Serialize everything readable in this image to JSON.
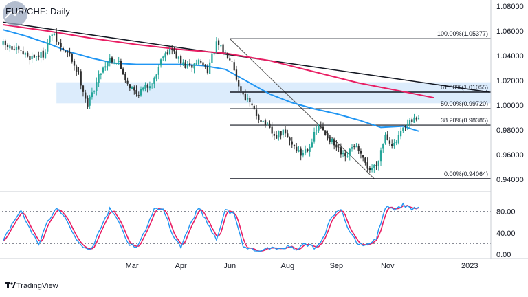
{
  "chart_data": {
    "type": "candlestick",
    "title": "EUR/CHF: Daily",
    "brand": "TradingView",
    "colors": {
      "up": "#26a69a",
      "down": "#2e2e2e",
      "ma_long": "#e91e63",
      "ma_short": "#2196f3",
      "zone": "#d6e9fb",
      "stoch_k": "#2196f3",
      "stoch_d": "#e91e63",
      "trendline": "#131722"
    },
    "price_axis": {
      "ylim": [
        0.93,
        1.085
      ],
      "ticks": [
        {
          "value": 1.08,
          "label": "1.08000"
        },
        {
          "value": 1.06,
          "label": "1.06000"
        },
        {
          "value": 1.04,
          "label": "1.04000"
        },
        {
          "value": 1.02,
          "label": "1.02000"
        },
        {
          "value": 1.0,
          "label": "1.00000"
        },
        {
          "value": 0.98,
          "label": "0.98000"
        },
        {
          "value": 0.96,
          "label": "0.96000"
        },
        {
          "value": 0.94,
          "label": "0.94000"
        }
      ]
    },
    "stoch_axis": {
      "ylim": [
        0,
        100
      ],
      "ticks": [
        {
          "value": 80,
          "label": "80.00"
        },
        {
          "value": 40,
          "label": "40.00"
        },
        {
          "value": 0,
          "label": "0.00"
        }
      ],
      "levels": [
        80,
        20
      ]
    },
    "x_ticks": [
      {
        "bar": 58,
        "label": "Mar"
      },
      {
        "bar": 80,
        "label": "Apr"
      },
      {
        "bar": 102,
        "label": "Jun"
      },
      {
        "bar": 128,
        "label": "Aug"
      },
      {
        "bar": 150,
        "label": "Sep"
      },
      {
        "bar": 173,
        "label": "Nov"
      },
      {
        "bar": 210,
        "label": "2023"
      }
    ],
    "total_bars": 220,
    "fibonacci": [
      {
        "ratio": 1.0,
        "price": 1.05377,
        "label": "100.00%(1.05377)"
      },
      {
        "ratio": 0.618,
        "price": 1.01055,
        "label": "61.80%(1.01055)"
      },
      {
        "ratio": 0.5,
        "price": 0.9972,
        "label": "50.00%(0.99720)"
      },
      {
        "ratio": 0.382,
        "price": 0.98385,
        "label": "38.20%(0.98385)"
      },
      {
        "ratio": 0.0,
        "price": 0.94064,
        "label": "0.00%(0.94064)"
      }
    ],
    "resistance_zone": {
      "from": 1.0015,
      "to": 1.0185,
      "start_bar": 24
    },
    "trendline": {
      "start": [
        0,
        1.067
      ],
      "end": [
        219,
        1.0105
      ]
    },
    "fib_diagonal": {
      "start": [
        102,
        1.05377
      ],
      "end": [
        167,
        0.94064
      ]
    },
    "ma_long": [
      [
        0,
        1.065
      ],
      [
        20,
        1.06
      ],
      [
        40,
        1.054
      ],
      [
        60,
        1.049
      ],
      [
        80,
        1.045
      ],
      [
        100,
        1.042
      ],
      [
        120,
        1.036
      ],
      [
        140,
        1.027
      ],
      [
        160,
        1.018
      ],
      [
        180,
        1.011
      ],
      [
        194,
        1.006
      ]
    ],
    "ma_short": [
      [
        0,
        1.061
      ],
      [
        10,
        1.056
      ],
      [
        20,
        1.05
      ],
      [
        30,
        1.043
      ],
      [
        40,
        1.038
      ],
      [
        50,
        1.034
      ],
      [
        60,
        1.033
      ],
      [
        70,
        1.033
      ],
      [
        80,
        1.033
      ],
      [
        90,
        1.032
      ],
      [
        100,
        1.029
      ],
      [
        110,
        1.019
      ],
      [
        120,
        1.009
      ],
      [
        130,
        1.002
      ],
      [
        140,
        0.997
      ],
      [
        150,
        0.993
      ],
      [
        160,
        0.988
      ],
      [
        170,
        0.982
      ],
      [
        180,
        0.983
      ],
      [
        187,
        0.979
      ]
    ],
    "close_path": [
      [
        0,
        1.049
      ],
      [
        6,
        1.044
      ],
      [
        12,
        1.039
      ],
      [
        18,
        1.041
      ],
      [
        22,
        1.058
      ],
      [
        26,
        1.046
      ],
      [
        30,
        1.04
      ],
      [
        34,
        1.025
      ],
      [
        38,
        1.0
      ],
      [
        41,
        1.014
      ],
      [
        44,
        1.028
      ],
      [
        48,
        1.038
      ],
      [
        52,
        1.034
      ],
      [
        56,
        1.018
      ],
      [
        60,
        1.009
      ],
      [
        64,
        1.014
      ],
      [
        68,
        1.021
      ],
      [
        72,
        1.042
      ],
      [
        76,
        1.045
      ],
      [
        80,
        1.034
      ],
      [
        84,
        1.03
      ],
      [
        88,
        1.036
      ],
      [
        92,
        1.029
      ],
      [
        96,
        1.049
      ],
      [
        100,
        1.042
      ],
      [
        103,
        1.038
      ],
      [
        106,
        1.015
      ],
      [
        110,
        1.004
      ],
      [
        114,
        0.992
      ],
      [
        118,
        0.985
      ],
      [
        122,
        0.974
      ],
      [
        126,
        0.978
      ],
      [
        130,
        0.969
      ],
      [
        134,
        0.96
      ],
      [
        138,
        0.968
      ],
      [
        142,
        0.983
      ],
      [
        146,
        0.975
      ],
      [
        150,
        0.965
      ],
      [
        154,
        0.956
      ],
      [
        158,
        0.968
      ],
      [
        162,
        0.955
      ],
      [
        165,
        0.948
      ],
      [
        168,
        0.952
      ],
      [
        172,
        0.976
      ],
      [
        176,
        0.967
      ],
      [
        180,
        0.98
      ],
      [
        184,
        0.987
      ],
      [
        187,
        0.991
      ]
    ],
    "stoch_path": [
      [
        0,
        25
      ],
      [
        4,
        55
      ],
      [
        8,
        82
      ],
      [
        12,
        48
      ],
      [
        16,
        18
      ],
      [
        20,
        60
      ],
      [
        24,
        88
      ],
      [
        28,
        70
      ],
      [
        32,
        35
      ],
      [
        36,
        12
      ],
      [
        40,
        10
      ],
      [
        44,
        50
      ],
      [
        48,
        84
      ],
      [
        52,
        60
      ],
      [
        56,
        22
      ],
      [
        60,
        10
      ],
      [
        64,
        45
      ],
      [
        68,
        83
      ],
      [
        72,
        86
      ],
      [
        76,
        40
      ],
      [
        80,
        14
      ],
      [
        84,
        55
      ],
      [
        88,
        88
      ],
      [
        92,
        58
      ],
      [
        96,
        28
      ],
      [
        100,
        82
      ],
      [
        104,
        76
      ],
      [
        108,
        14
      ],
      [
        112,
        10
      ],
      [
        116,
        8
      ],
      [
        120,
        12
      ],
      [
        124,
        8
      ],
      [
        128,
        14
      ],
      [
        132,
        10
      ],
      [
        136,
        20
      ],
      [
        140,
        12
      ],
      [
        144,
        30
      ],
      [
        148,
        72
      ],
      [
        152,
        85
      ],
      [
        156,
        40
      ],
      [
        160,
        18
      ],
      [
        164,
        18
      ],
      [
        168,
        30
      ],
      [
        172,
        88
      ],
      [
        176,
        85
      ],
      [
        180,
        92
      ],
      [
        184,
        84
      ],
      [
        187,
        86
      ]
    ]
  }
}
